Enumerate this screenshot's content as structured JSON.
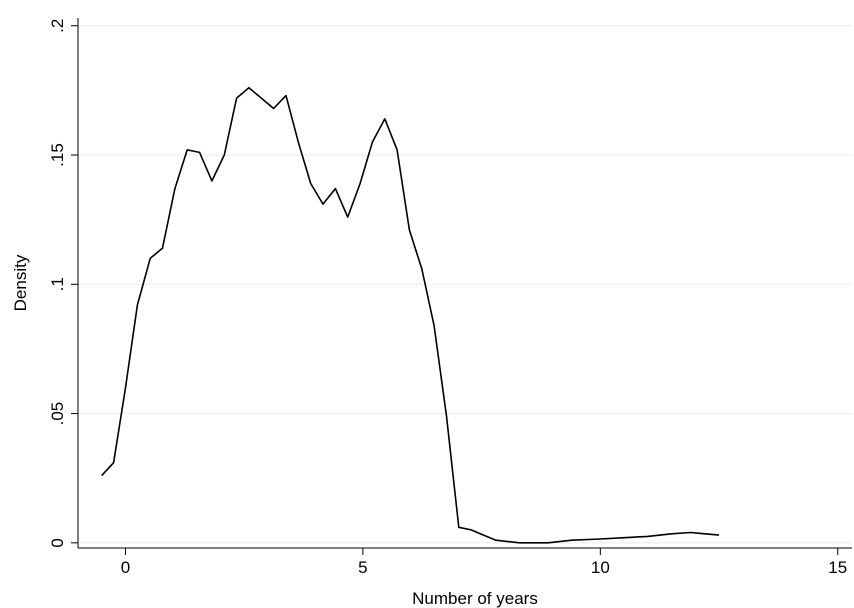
{
  "chart_data": {
    "type": "line",
    "title": "",
    "xlabel": "Number of years",
    "ylabel": "Density",
    "xlim": [
      -1,
      15.3
    ],
    "ylim": [
      -0.002,
      0.203
    ],
    "xticks": [
      0,
      5,
      10,
      15
    ],
    "xtick_labels": [
      "0",
      "5",
      "10",
      "15"
    ],
    "yticks": [
      0,
      0.05,
      0.1,
      0.15,
      0.2
    ],
    "ytick_labels": [
      "0",
      ".05",
      ".1",
      ".15",
      ".2"
    ],
    "grid": "horizontal",
    "legend": "none",
    "line_color": "#000000",
    "grid_color": "#e6eef2",
    "series": [
      {
        "x": [
          -0.5,
          -0.25,
          0.0,
          0.25,
          0.52,
          0.78,
          1.04,
          1.3,
          1.56,
          1.82,
          2.08,
          2.34,
          2.6,
          2.86,
          3.12,
          3.38,
          3.64,
          3.9,
          4.16,
          4.42,
          4.68,
          4.94,
          5.2,
          5.46,
          5.72,
          5.98,
          6.24,
          6.5,
          6.76,
          7.02,
          7.28,
          7.54,
          7.8,
          8.3,
          8.9,
          9.4,
          10.0,
          10.5,
          11.0,
          11.5,
          11.9,
          12.2,
          12.5
        ],
        "values": [
          0.026,
          0.031,
          0.06,
          0.092,
          0.11,
          0.114,
          0.137,
          0.152,
          0.151,
          0.14,
          0.15,
          0.172,
          0.176,
          0.172,
          0.168,
          0.173,
          0.155,
          0.139,
          0.131,
          0.137,
          0.126,
          0.139,
          0.155,
          0.164,
          0.152,
          0.121,
          0.106,
          0.084,
          0.049,
          0.006,
          0.005,
          0.003,
          0.001,
          0.0,
          0.0,
          0.001,
          0.0015,
          0.002,
          0.0025,
          0.0035,
          0.004,
          0.0035,
          0.003
        ]
      }
    ]
  }
}
